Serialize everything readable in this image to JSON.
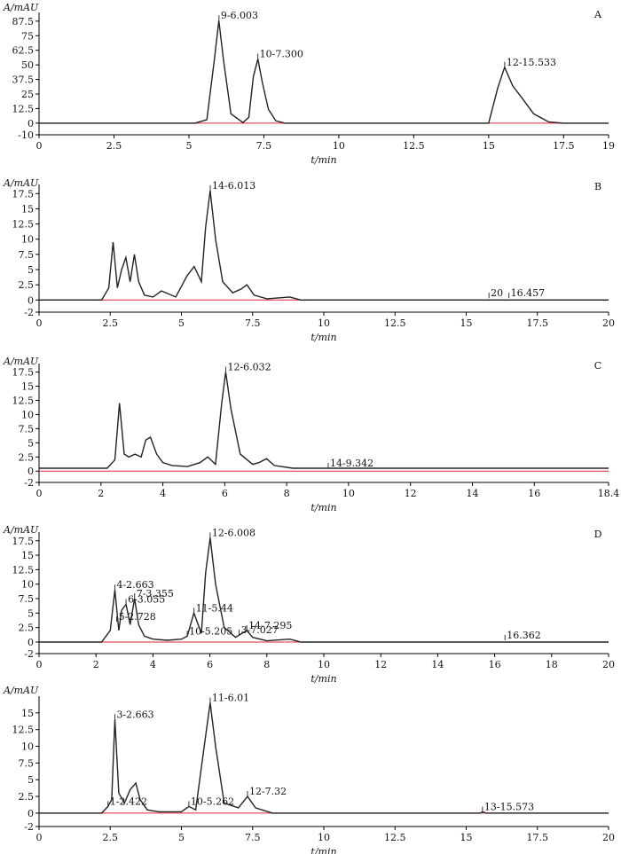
{
  "chart_data": [
    {
      "type": "line",
      "panel": "A",
      "ylabel": "A/mAU",
      "xlabel": "t/min",
      "xlim": [
        0,
        19
      ],
      "ylim": [
        -10,
        95
      ],
      "xticks": [
        "0",
        "2.5",
        "5",
        "7.5",
        "10",
        "12.5",
        "15",
        "17.5",
        "19"
      ],
      "yticks": [
        "-10",
        "0",
        "12.5",
        "25",
        "37.5",
        "50",
        "62.5",
        "75",
        "87.5"
      ],
      "series": [
        {
          "x": [
            0,
            5.2,
            5.6,
            5.85,
            6.0,
            6.15,
            6.4,
            6.8,
            7.0,
            7.15,
            7.3,
            7.45,
            7.65,
            7.9,
            8.2,
            15.0,
            15.3,
            15.53,
            15.8,
            16.1,
            16.5,
            17.0,
            17.5,
            19
          ],
          "y": [
            0,
            0,
            3,
            55,
            88,
            55,
            8,
            0.5,
            5,
            40,
            55,
            35,
            12,
            2,
            0,
            0,
            30,
            48,
            32,
            22,
            8,
            1,
            0,
            0
          ]
        }
      ],
      "annotations": [
        {
          "x": 6.003,
          "y": 88,
          "text": "9-6.003"
        },
        {
          "x": 7.3,
          "y": 55,
          "text": "10-7.300"
        },
        {
          "x": 15.533,
          "y": 48,
          "text": "12-15.533"
        }
      ]
    },
    {
      "type": "line",
      "panel": "B",
      "ylabel": "A/mAU",
      "xlabel": "t/min",
      "xlim": [
        0,
        20
      ],
      "ylim": [
        -2,
        19
      ],
      "xticks": [
        "0",
        "2.5",
        "5",
        "7.5",
        "10",
        "12.5",
        "15",
        "17.5",
        "20"
      ],
      "yticks": [
        "-2",
        "0",
        "2.5",
        "5",
        "7.5",
        "10",
        "12.5",
        "15",
        "17.5"
      ],
      "series": [
        {
          "x": [
            0,
            2.2,
            2.45,
            2.6,
            2.75,
            2.9,
            3.05,
            3.2,
            3.35,
            3.5,
            3.7,
            4.0,
            4.3,
            4.8,
            5.2,
            5.45,
            5.7,
            5.85,
            6.01,
            6.2,
            6.45,
            6.8,
            7.1,
            7.3,
            7.55,
            8.0,
            8.8,
            9.2,
            20
          ],
          "y": [
            0,
            0,
            2,
            9.5,
            2,
            5,
            7,
            3,
            7.5,
            3,
            0.8,
            0.5,
            1.5,
            0.5,
            4,
            5.5,
            3,
            12,
            18,
            10,
            3,
            1.2,
            1.8,
            2.5,
            0.8,
            0.2,
            0.5,
            0,
            0
          ]
        }
      ],
      "annotations": [
        {
          "x": 6.013,
          "y": 18,
          "text": "14-6.013"
        },
        {
          "x": 15.8,
          "y": 0.3,
          "text": "20"
        },
        {
          "x": 16.5,
          "y": 0.3,
          "text": "16.457"
        }
      ]
    },
    {
      "type": "line",
      "panel": "C",
      "ylabel": "A/mAU",
      "xlabel": "t/min",
      "xlim": [
        0,
        18.4
      ],
      "ylim": [
        -2,
        19
      ],
      "xticks": [
        "0",
        "2",
        "4",
        "6",
        "8",
        "10",
        "12",
        "14",
        "16",
        "18.4"
      ],
      "yticks": [
        "-2",
        "0",
        "2.5",
        "5",
        "7.5",
        "10",
        "12.5",
        "15",
        "17.5"
      ],
      "series": [
        {
          "x": [
            0,
            2.2,
            2.45,
            2.6,
            2.75,
            2.9,
            3.1,
            3.3,
            3.45,
            3.6,
            3.8,
            4.0,
            4.3,
            4.8,
            5.2,
            5.45,
            5.7,
            5.9,
            6.03,
            6.2,
            6.5,
            6.9,
            7.1,
            7.35,
            7.6,
            8.2,
            18.4
          ],
          "y": [
            0.5,
            0.5,
            2,
            12,
            3,
            2.5,
            3,
            2.5,
            5.5,
            6,
            3,
            1.5,
            1,
            0.8,
            1.5,
            2.5,
            1.2,
            12,
            17.5,
            11,
            3,
            1.2,
            1.5,
            2.2,
            1,
            0.5,
            0.5
          ]
        }
      ],
      "annotations": [
        {
          "x": 6.032,
          "y": 17.5,
          "text": "12-6.032"
        },
        {
          "x": 9.342,
          "y": 0.5,
          "text": "14-9.342"
        }
      ]
    },
    {
      "type": "line",
      "panel": "D",
      "ylabel": "A/mAU",
      "xlabel": "t/min",
      "xlim": [
        0,
        20
      ],
      "ylim": [
        -2,
        19
      ],
      "xticks": [
        "0",
        "2",
        "4",
        "6",
        "8",
        "10",
        "12",
        "14",
        "16",
        "18",
        "20"
      ],
      "yticks": [
        "-2",
        "0",
        "2.5",
        "5",
        "7.5",
        "10",
        "12.5",
        "15",
        "17.5"
      ],
      "series": [
        {
          "x": [
            0,
            2.2,
            2.5,
            2.663,
            2.8,
            2.9,
            3.055,
            3.2,
            3.355,
            3.5,
            3.7,
            4.0,
            4.5,
            5.0,
            5.205,
            5.44,
            5.7,
            5.85,
            6.008,
            6.2,
            6.5,
            6.9,
            7.027,
            7.295,
            7.5,
            8.0,
            8.8,
            9.2,
            20
          ],
          "y": [
            0,
            0,
            2,
            9,
            2,
            5.5,
            6.5,
            3,
            7.5,
            3,
            1,
            0.5,
            0.3,
            0.5,
            1,
            5,
            1.5,
            12,
            18,
            10,
            2.5,
            0.8,
            1.2,
            2,
            0.8,
            0.2,
            0.5,
            0,
            0
          ]
        }
      ],
      "annotations": [
        {
          "x": 2.663,
          "y": 9,
          "text": "4-2.663"
        },
        {
          "x": 2.728,
          "y": 3.5,
          "text": "5-2.728"
        },
        {
          "x": 3.055,
          "y": 6.5,
          "text": "6-3.055"
        },
        {
          "x": 3.355,
          "y": 7.5,
          "text": "7-3.355"
        },
        {
          "x": 5.205,
          "y": 1,
          "text": "10-5.205"
        },
        {
          "x": 5.44,
          "y": 5,
          "text": "11-5.44"
        },
        {
          "x": 6.008,
          "y": 18,
          "text": "12-6.008"
        },
        {
          "x": 7.027,
          "y": 1.2,
          "text": "3-7.027"
        },
        {
          "x": 7.295,
          "y": 2,
          "text": "14-7.295"
        },
        {
          "x": 16.362,
          "y": 0.3,
          "text": "16.362"
        }
      ]
    },
    {
      "type": "line",
      "panel": "",
      "ylabel": "A/mAU",
      "xlabel": "t/min",
      "xlim": [
        0,
        20
      ],
      "ylim": [
        -2,
        17.5
      ],
      "xticks": [
        "0",
        "2.5",
        "5",
        "7.5",
        "10",
        "12.5",
        "15",
        "17.5",
        "20"
      ],
      "yticks": [
        "-2",
        "0",
        "2.5",
        "5",
        "7.5",
        "10",
        "12.5",
        "15"
      ],
      "series": [
        {
          "x": [
            0,
            2.2,
            2.422,
            2.55,
            2.663,
            2.8,
            3.0,
            3.2,
            3.4,
            3.55,
            3.8,
            4.2,
            5.0,
            5.262,
            5.5,
            5.8,
            6.01,
            6.2,
            6.5,
            7.0,
            7.32,
            7.6,
            8.2,
            15.5,
            15.573,
            15.7,
            20
          ],
          "y": [
            0,
            0,
            1,
            2,
            14,
            3,
            1.5,
            3.5,
            4.5,
            2,
            0.5,
            0.2,
            0.2,
            1,
            0.5,
            10,
            16.5,
            10,
            1.5,
            0.8,
            2.5,
            0.8,
            0,
            0,
            0.2,
            0,
            0
          ]
        }
      ],
      "annotations": [
        {
          "x": 2.422,
          "y": 1,
          "text": "1-2.422"
        },
        {
          "x": 2.663,
          "y": 14,
          "text": "3-2.663"
        },
        {
          "x": 5.262,
          "y": 1,
          "text": "10-5.262"
        },
        {
          "x": 6.01,
          "y": 16.5,
          "text": "11-6.01"
        },
        {
          "x": 7.32,
          "y": 2.5,
          "text": "12-7.32"
        },
        {
          "x": 15.573,
          "y": 0.2,
          "text": "13-15.573"
        }
      ]
    }
  ]
}
